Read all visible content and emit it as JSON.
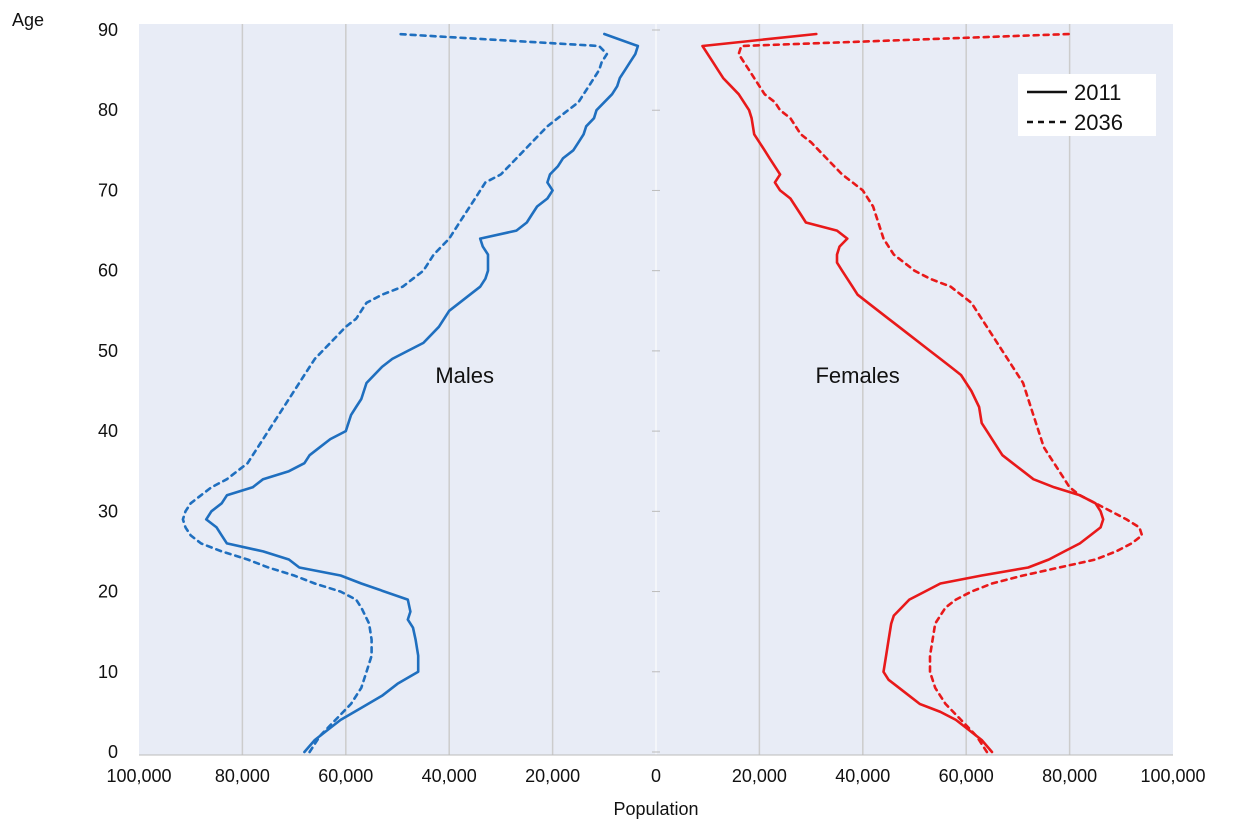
{
  "chart_data": {
    "type": "line",
    "title": "",
    "xlabel": "Population",
    "ylabel": "Age",
    "xlim": [
      -100000,
      100000
    ],
    "ylim": [
      0,
      90
    ],
    "x_tick_labels": [
      "100,000",
      "80,000",
      "60,000",
      "40,000",
      "20,000",
      "0",
      "20,000",
      "40,000",
      "60,000",
      "80,000",
      "100,000"
    ],
    "x_tick_values": [
      -100000,
      -80000,
      -60000,
      -40000,
      -20000,
      0,
      20000,
      40000,
      60000,
      80000,
      100000
    ],
    "y_tick_labels": [
      "0",
      "10",
      "20",
      "30",
      "40",
      "50",
      "60",
      "70",
      "80",
      "90"
    ],
    "y_tick_values": [
      0,
      10,
      20,
      30,
      40,
      50,
      60,
      70,
      80,
      90
    ],
    "grid": true,
    "legend": {
      "placement": "top-right",
      "entries": [
        {
          "label": "2011",
          "style": "solid"
        },
        {
          "label": "2036",
          "style": "dashed"
        }
      ]
    },
    "annotations": [
      {
        "text": "Males",
        "x": -37000,
        "y": 47
      },
      {
        "text": "Females",
        "x": 39000,
        "y": 47
      }
    ],
    "colors": {
      "males": "#1f6fbf",
      "females": "#e8191a",
      "plot_background": "#e8ecf6",
      "gridline": "#cccccc"
    },
    "series": [
      {
        "name": "2011",
        "group": "Males",
        "style": "solid",
        "color": "#1f6fbf",
        "points": [
          [
            -68000,
            0
          ],
          [
            -66000,
            1.5
          ],
          [
            -63000,
            3
          ],
          [
            -61000,
            4
          ],
          [
            -57000,
            5.5
          ],
          [
            -53000,
            7
          ],
          [
            -50000,
            8.5
          ],
          [
            -46000,
            10
          ],
          [
            -46000,
            12
          ],
          [
            -46500,
            14
          ],
          [
            -47000,
            15.5
          ],
          [
            -48000,
            16.5
          ],
          [
            -47500,
            17.5
          ],
          [
            -48000,
            19
          ],
          [
            -57000,
            21
          ],
          [
            -61000,
            22
          ],
          [
            -69000,
            23
          ],
          [
            -71000,
            24
          ],
          [
            -76000,
            25
          ],
          [
            -83000,
            26
          ],
          [
            -84000,
            27
          ],
          [
            -85000,
            28
          ],
          [
            -87000,
            29
          ],
          [
            -86000,
            30
          ],
          [
            -84000,
            31
          ],
          [
            -83000,
            32
          ],
          [
            -78000,
            33
          ],
          [
            -76000,
            34
          ],
          [
            -71000,
            35
          ],
          [
            -68000,
            36
          ],
          [
            -67000,
            37
          ],
          [
            -65000,
            38
          ],
          [
            -63000,
            39
          ],
          [
            -60000,
            40
          ],
          [
            -59000,
            42
          ],
          [
            -58000,
            43
          ],
          [
            -57000,
            44
          ],
          [
            -56000,
            46
          ],
          [
            -53000,
            48
          ],
          [
            -51000,
            49
          ],
          [
            -48000,
            50
          ],
          [
            -45000,
            51
          ],
          [
            -42000,
            53
          ],
          [
            -40000,
            55
          ],
          [
            -38000,
            56
          ],
          [
            -36000,
            57
          ],
          [
            -34000,
            58
          ],
          [
            -33000,
            59
          ],
          [
            -32500,
            60
          ],
          [
            -32500,
            62
          ],
          [
            -33500,
            63
          ],
          [
            -34000,
            64
          ],
          [
            -27000,
            65
          ],
          [
            -25000,
            66
          ],
          [
            -24000,
            67
          ],
          [
            -23000,
            68
          ],
          [
            -21000,
            69
          ],
          [
            -20000,
            70
          ],
          [
            -21000,
            71
          ],
          [
            -20500,
            72
          ],
          [
            -19000,
            73
          ],
          [
            -18000,
            74
          ],
          [
            -16000,
            75
          ],
          [
            -15000,
            76
          ],
          [
            -14000,
            77
          ],
          [
            -13500,
            78
          ],
          [
            -12000,
            79
          ],
          [
            -11500,
            80
          ],
          [
            -10000,
            81
          ],
          [
            -8500,
            82
          ],
          [
            -7500,
            83
          ],
          [
            -7000,
            84
          ],
          [
            -6000,
            85
          ],
          [
            -5000,
            86
          ],
          [
            -4000,
            87
          ],
          [
            -3500,
            88
          ],
          [
            -10000,
            89.5
          ]
        ]
      },
      {
        "name": "2036",
        "group": "Males",
        "style": "dashed",
        "color": "#1f6fbf",
        "points": [
          [
            -67000,
            0
          ],
          [
            -65000,
            2
          ],
          [
            -62000,
            4
          ],
          [
            -59000,
            6
          ],
          [
            -57000,
            8
          ],
          [
            -56000,
            10
          ],
          [
            -55000,
            12
          ],
          [
            -55000,
            14
          ],
          [
            -55500,
            16
          ],
          [
            -57000,
            18
          ],
          [
            -58000,
            19
          ],
          [
            -61000,
            20
          ],
          [
            -66000,
            21
          ],
          [
            -70000,
            22
          ],
          [
            -75000,
            23
          ],
          [
            -79000,
            24
          ],
          [
            -84000,
            25
          ],
          [
            -88000,
            26
          ],
          [
            -90000,
            27
          ],
          [
            -91000,
            28
          ],
          [
            -91500,
            29
          ],
          [
            -91000,
            30
          ],
          [
            -90000,
            31
          ],
          [
            -88000,
            32
          ],
          [
            -86000,
            33
          ],
          [
            -83000,
            34
          ],
          [
            -81000,
            35
          ],
          [
            -79000,
            36
          ],
          [
            -78000,
            37
          ],
          [
            -77000,
            38
          ],
          [
            -76000,
            39
          ],
          [
            -74000,
            41
          ],
          [
            -72000,
            43
          ],
          [
            -70000,
            45
          ],
          [
            -68000,
            47
          ],
          [
            -66000,
            49
          ],
          [
            -63000,
            51
          ],
          [
            -60000,
            53
          ],
          [
            -58000,
            54
          ],
          [
            -56000,
            56
          ],
          [
            -53000,
            57
          ],
          [
            -49000,
            58
          ],
          [
            -47000,
            59
          ],
          [
            -45000,
            60
          ],
          [
            -43000,
            62
          ],
          [
            -40000,
            64
          ],
          [
            -38000,
            66
          ],
          [
            -37000,
            67
          ],
          [
            -35000,
            69
          ],
          [
            -33000,
            71
          ],
          [
            -30000,
            72
          ],
          [
            -27000,
            74
          ],
          [
            -24000,
            76
          ],
          [
            -21000,
            78
          ],
          [
            -19000,
            79
          ],
          [
            -17000,
            80
          ],
          [
            -15000,
            81
          ],
          [
            -14000,
            82
          ],
          [
            -13000,
            83
          ],
          [
            -12000,
            84
          ],
          [
            -11000,
            85
          ],
          [
            -10500,
            86
          ],
          [
            -9500,
            87
          ],
          [
            -11000,
            88
          ],
          [
            -50000,
            89.5
          ]
        ]
      },
      {
        "name": "2011",
        "group": "Females",
        "style": "solid",
        "color": "#e8191a",
        "points": [
          [
            65000,
            0
          ],
          [
            63000,
            1.5
          ],
          [
            60000,
            3
          ],
          [
            58000,
            4
          ],
          [
            55000,
            5
          ],
          [
            53000,
            5.5
          ],
          [
            51000,
            6
          ],
          [
            49000,
            7
          ],
          [
            47000,
            8
          ],
          [
            45000,
            9
          ],
          [
            44000,
            10
          ],
          [
            44500,
            12
          ],
          [
            45000,
            14
          ],
          [
            45500,
            16
          ],
          [
            46000,
            17
          ],
          [
            47500,
            18
          ],
          [
            49000,
            19
          ],
          [
            52000,
            20
          ],
          [
            55000,
            21
          ],
          [
            63000,
            22
          ],
          [
            72000,
            23
          ],
          [
            76000,
            24
          ],
          [
            79000,
            25
          ],
          [
            82000,
            26
          ],
          [
            84000,
            27
          ],
          [
            86000,
            28
          ],
          [
            86500,
            29
          ],
          [
            86000,
            30
          ],
          [
            85000,
            31
          ],
          [
            82000,
            32
          ],
          [
            77000,
            33
          ],
          [
            73000,
            34
          ],
          [
            71000,
            35
          ],
          [
            69000,
            36
          ],
          [
            67000,
            37
          ],
          [
            66000,
            38
          ],
          [
            65000,
            39
          ],
          [
            64000,
            40
          ],
          [
            63000,
            41
          ],
          [
            62500,
            43
          ],
          [
            61000,
            45
          ],
          [
            59000,
            47
          ],
          [
            57000,
            48
          ],
          [
            55000,
            49
          ],
          [
            53000,
            50
          ],
          [
            51000,
            51
          ],
          [
            49000,
            52
          ],
          [
            47000,
            53
          ],
          [
            45000,
            54
          ],
          [
            43000,
            55
          ],
          [
            41000,
            56
          ],
          [
            39000,
            57
          ],
          [
            38000,
            58
          ],
          [
            37000,
            59
          ],
          [
            36000,
            60
          ],
          [
            35000,
            61
          ],
          [
            35000,
            62
          ],
          [
            35500,
            63
          ],
          [
            37000,
            64
          ],
          [
            35000,
            65
          ],
          [
            29000,
            66
          ],
          [
            28000,
            67
          ],
          [
            27000,
            68
          ],
          [
            26000,
            69
          ],
          [
            24000,
            70
          ],
          [
            23000,
            71
          ],
          [
            24000,
            72
          ],
          [
            23000,
            73
          ],
          [
            22000,
            74
          ],
          [
            21000,
            75
          ],
          [
            20000,
            76
          ],
          [
            19000,
            77
          ],
          [
            18500,
            79
          ],
          [
            18000,
            80
          ],
          [
            17000,
            81
          ],
          [
            16000,
            82
          ],
          [
            14500,
            83
          ],
          [
            13000,
            84
          ],
          [
            12000,
            85
          ],
          [
            11000,
            86
          ],
          [
            10000,
            87
          ],
          [
            9000,
            88
          ],
          [
            31000,
            89.5
          ]
        ]
      },
      {
        "name": "2036",
        "group": "Females",
        "style": "dashed",
        "color": "#e8191a",
        "points": [
          [
            64000,
            0
          ],
          [
            62000,
            2
          ],
          [
            59000,
            4
          ],
          [
            56000,
            6
          ],
          [
            54000,
            8
          ],
          [
            53000,
            10
          ],
          [
            53000,
            12
          ],
          [
            53500,
            14
          ],
          [
            54000,
            16
          ],
          [
            56000,
            18
          ],
          [
            58000,
            19
          ],
          [
            61000,
            20
          ],
          [
            65000,
            21
          ],
          [
            71000,
            22
          ],
          [
            78000,
            23
          ],
          [
            85000,
            24
          ],
          [
            89000,
            25
          ],
          [
            92000,
            26
          ],
          [
            94000,
            27
          ],
          [
            93500,
            28
          ],
          [
            91000,
            29
          ],
          [
            88000,
            30
          ],
          [
            85000,
            31
          ],
          [
            82000,
            32
          ],
          [
            80000,
            33
          ],
          [
            79000,
            34
          ],
          [
            78000,
            35
          ],
          [
            77000,
            36
          ],
          [
            76000,
            37
          ],
          [
            75000,
            38
          ],
          [
            74000,
            40
          ],
          [
            73000,
            42
          ],
          [
            72000,
            44
          ],
          [
            71000,
            46
          ],
          [
            69000,
            48
          ],
          [
            67000,
            50
          ],
          [
            65000,
            52
          ],
          [
            63000,
            54
          ],
          [
            61000,
            56
          ],
          [
            59000,
            57
          ],
          [
            57000,
            58
          ],
          [
            53000,
            59
          ],
          [
            50000,
            60
          ],
          [
            48000,
            61
          ],
          [
            46000,
            62
          ],
          [
            45000,
            63
          ],
          [
            44000,
            64
          ],
          [
            43000,
            66
          ],
          [
            42000,
            68
          ],
          [
            40000,
            70
          ],
          [
            38000,
            71
          ],
          [
            36000,
            72
          ],
          [
            33000,
            74
          ],
          [
            30000,
            76
          ],
          [
            28000,
            77
          ],
          [
            26000,
            79
          ],
          [
            24000,
            80
          ],
          [
            23000,
            81
          ],
          [
            21000,
            82
          ],
          [
            19000,
            84
          ],
          [
            18000,
            85
          ],
          [
            17000,
            86
          ],
          [
            16000,
            87
          ],
          [
            16500,
            88
          ],
          [
            80000,
            89.5
          ]
        ]
      }
    ]
  }
}
